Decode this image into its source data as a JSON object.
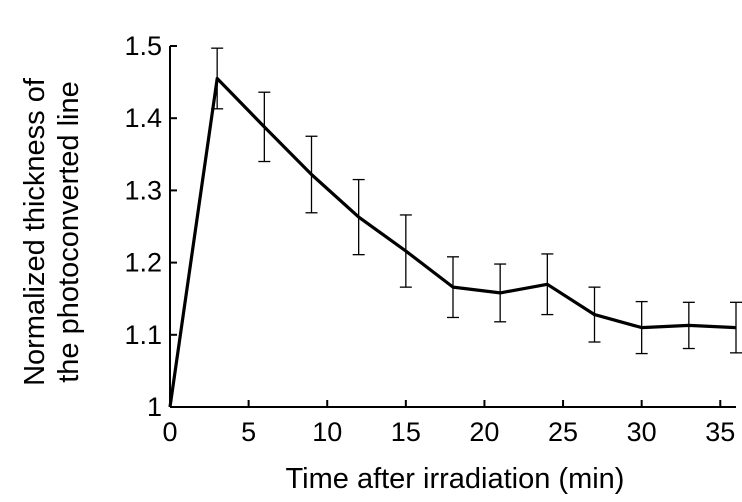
{
  "chart_data": {
    "type": "line",
    "title": "",
    "xlabel": "Time after irradiation (min)",
    "ylabel_line1": "Normalized thickness of",
    "ylabel_line2": "the photoconverted line",
    "xlim": [
      0,
      36
    ],
    "ylim": [
      1.0,
      1.5
    ],
    "x_ticks": [
      0,
      5,
      10,
      15,
      20,
      25,
      30,
      35
    ],
    "x_tick_labels": [
      "0",
      "5",
      "10",
      "15",
      "20",
      "25",
      "30",
      "35"
    ],
    "y_ticks": [
      1.0,
      1.1,
      1.2,
      1.3,
      1.4,
      1.5
    ],
    "y_tick_labels": [
      "1",
      "1.1",
      "1.2",
      "1.3",
      "1.4",
      "1.5"
    ],
    "grid": false,
    "legend": "none",
    "line_color": "#000000",
    "series": [
      {
        "x": [
          0,
          3,
          6,
          9,
          12,
          15,
          18,
          21,
          24,
          27,
          30,
          33,
          36
        ],
        "y": [
          1.0,
          1.455,
          1.388,
          1.322,
          1.263,
          1.216,
          1.166,
          1.158,
          1.17,
          1.128,
          1.11,
          1.113,
          1.11
        ],
        "error": [
          0,
          0.042,
          0.048,
          0.053,
          0.052,
          0.05,
          0.042,
          0.04,
          0.042,
          0.038,
          0.036,
          0.032,
          0.035
        ]
      }
    ]
  }
}
